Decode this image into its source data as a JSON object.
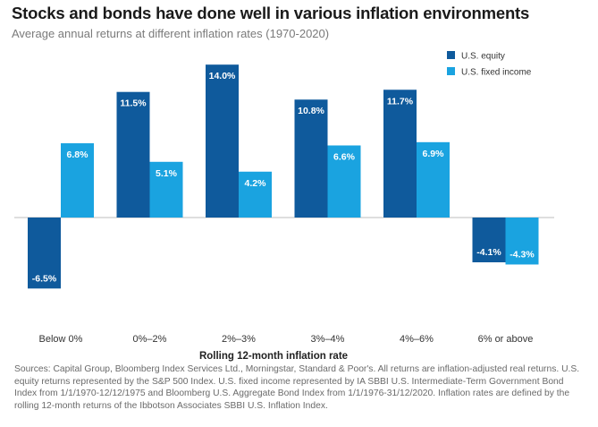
{
  "chart_data": {
    "type": "bar",
    "title": "Stocks and bonds have done well in various inflation environments",
    "subtitle": "Average annual returns at different inflation rates (1970-2020)",
    "xlabel": "Rolling 12-month inflation rate",
    "ylabel": "",
    "categories": [
      "Below 0%",
      "0%–2%",
      "2%–3%",
      "3%–4%",
      "4%–6%",
      "6% or above"
    ],
    "series": [
      {
        "name": "U.S. equity",
        "color": "#0f5a9c",
        "values": [
          -6.5,
          11.5,
          14.0,
          10.8,
          11.7,
          -4.1
        ],
        "labels": [
          "-6.5%",
          "11.5%",
          "14.0%",
          "10.8%",
          "11.7%",
          "-4.1%"
        ]
      },
      {
        "name": "U.S. fixed income",
        "color": "#1aa3e0",
        "values": [
          6.8,
          5.1,
          4.2,
          6.6,
          6.9,
          -4.3
        ],
        "labels": [
          "6.8%",
          "5.1%",
          "4.2%",
          "6.6%",
          "6.9%",
          "-4.3%"
        ]
      }
    ],
    "ylim": [
      -8.5,
      15.5
    ],
    "grid": false,
    "legend": "top-right"
  },
  "sources": "Sources: Capital Group, Bloomberg Index Services Ltd., Morningstar, Standard & Poor's. All returns are inflation-adjusted real returns. U.S. equity returns represented by the S&P 500 Index. U.S. fixed income represented by IA SBBI U.S. Intermediate-Term Government Bond Index from 1/1/1970-12/12/1975 and Bloomberg U.S. Aggregate Bond Index from 1/1/1976-31/12/2020. Inflation rates are defined by the rolling 12-month returns of the Ibbotson Associates SBBI U.S. Inflation Index."
}
